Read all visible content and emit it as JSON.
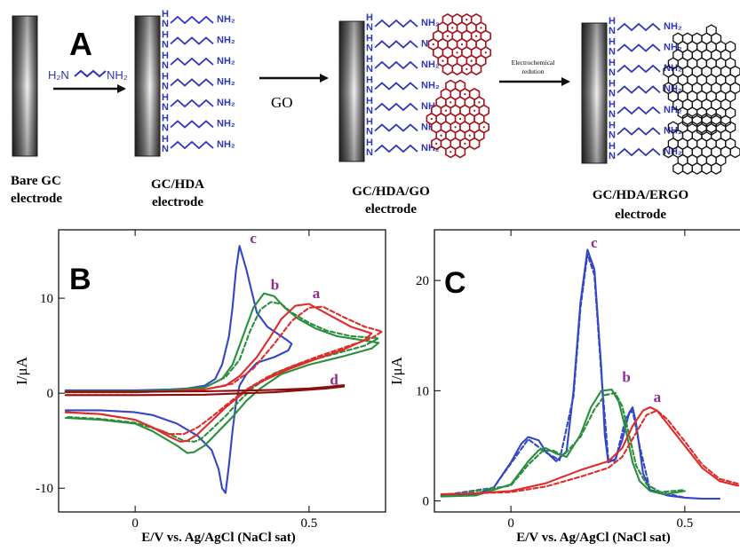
{
  "panel_a": {
    "letter": "A",
    "linker_formula": {
      "left": "H₂N",
      "right": "NH₂"
    },
    "amine_label": "NH₂",
    "h_label": "H",
    "n_label": "N",
    "go_label": "GO",
    "reduction_label_line1": "Electrochemical",
    "reduction_label_line2": "redution",
    "stages": [
      {
        "line1": "Bare GC",
        "line2": "electrode"
      },
      {
        "line1": "GC/HDA",
        "line2": "electrode"
      },
      {
        "line1": "GC/HDA/GO",
        "line2": "electrode"
      },
      {
        "line1": "GC/HDA/ERGO",
        "line2": "electrode"
      }
    ],
    "colors": {
      "chain": "#2b36b8",
      "go": "#a3131a",
      "ergo": "#111111"
    }
  },
  "chart_data": [
    {
      "panel_letter": "B",
      "type": "line",
      "xlabel": "E/V vs. Ag/AgCl (NaCl sat)",
      "ylabel": "I/μA",
      "xlim": [
        -0.22,
        0.72
      ],
      "ylim": [
        -12.5,
        17.2
      ],
      "x_ticks": [
        0,
        0.5
      ],
      "x_tick_labels": [
        "0",
        "0.5"
      ],
      "y_ticks": [
        -10,
        0,
        10
      ],
      "y_tick_labels": [
        "-10",
        "0",
        "10"
      ],
      "curve_labels": [
        {
          "text": "c",
          "x": 0.33,
          "y": 15.8
        },
        {
          "text": "b",
          "x": 0.39,
          "y": 10.9
        },
        {
          "text": "a",
          "x": 0.51,
          "y": 10.0
        },
        {
          "text": "d",
          "x": 0.56,
          "y": 0.9
        }
      ],
      "series": [
        {
          "color": "#3347c4",
          "dashed": false,
          "x": [
            -0.2,
            -0.1,
            0.0,
            0.1,
            0.15,
            0.2,
            0.23,
            0.25,
            0.27,
            0.28,
            0.29,
            0.3,
            0.32,
            0.35,
            0.38,
            0.42,
            0.44,
            0.45,
            0.44,
            0.4,
            0.35,
            0.32,
            0.3,
            0.29,
            0.28,
            0.27,
            0.26,
            0.25,
            0.24,
            0.22,
            0.18,
            0.12,
            0.05,
            0.0,
            -0.1,
            -0.2
          ],
          "y": [
            0.3,
            0.3,
            0.3,
            0.4,
            0.5,
            0.8,
            1.5,
            3.0,
            6.0,
            9.0,
            13.0,
            15.5,
            13.0,
            8.5,
            7.0,
            6.0,
            5.5,
            5.2,
            4.5,
            3.8,
            3.2,
            2.0,
            0.8,
            -1.0,
            -4.0,
            -7.5,
            -10.5,
            -10.0,
            -8.0,
            -6.0,
            -4.5,
            -3.2,
            -2.3,
            -2.0,
            -1.8,
            -1.8
          ]
        },
        {
          "color": "#2a8f3b",
          "dashed": false,
          "x": [
            -0.2,
            -0.1,
            0.0,
            0.1,
            0.2,
            0.25,
            0.28,
            0.31,
            0.34,
            0.37,
            0.4,
            0.43,
            0.47,
            0.52,
            0.58,
            0.65,
            0.7,
            0.68,
            0.6,
            0.5,
            0.42,
            0.36,
            0.32,
            0.28,
            0.24,
            0.2,
            0.17,
            0.15,
            0.12,
            0.05,
            0.0,
            -0.1,
            -0.2
          ],
          "y": [
            0.2,
            0.2,
            0.2,
            0.3,
            0.6,
            1.5,
            3.0,
            6.0,
            9.0,
            10.5,
            10.2,
            9.0,
            7.8,
            6.8,
            6.0,
            5.6,
            5.3,
            4.7,
            3.9,
            3.0,
            2.0,
            0.5,
            -0.8,
            -2.5,
            -4.0,
            -5.5,
            -6.2,
            -6.3,
            -5.5,
            -4.0,
            -3.2,
            -2.8,
            -2.6
          ]
        },
        {
          "color": "#2a8f3b",
          "dashed": true,
          "x": [
            -0.2,
            0.0,
            0.1,
            0.2,
            0.26,
            0.3,
            0.33,
            0.36,
            0.39,
            0.42,
            0.45,
            0.5,
            0.55,
            0.62,
            0.7,
            0.66,
            0.58,
            0.48,
            0.4,
            0.34,
            0.3,
            0.26,
            0.22,
            0.19,
            0.17,
            0.14,
            0.08,
            0.0,
            -0.1,
            -0.2
          ],
          "y": [
            0.2,
            0.2,
            0.3,
            0.6,
            1.7,
            3.5,
            6.5,
            8.8,
            9.6,
            9.4,
            8.5,
            7.4,
            6.6,
            6.0,
            5.8,
            5.0,
            4.2,
            3.2,
            2.1,
            0.6,
            -0.8,
            -2.4,
            -3.8,
            -4.8,
            -5.1,
            -5.0,
            -4.0,
            -3.1,
            -2.7,
            -2.5
          ]
        },
        {
          "color": "#e02b2b",
          "dashed": false,
          "x": [
            -0.2,
            0.0,
            0.1,
            0.2,
            0.26,
            0.3,
            0.35,
            0.39,
            0.42,
            0.46,
            0.5,
            0.56,
            0.62,
            0.68,
            0.66,
            0.6,
            0.52,
            0.44,
            0.38,
            0.34,
            0.3,
            0.26,
            0.22,
            0.18,
            0.15,
            0.13,
            0.1,
            0.05,
            0.0,
            -0.1,
            -0.2
          ],
          "y": [
            0.1,
            0.1,
            0.2,
            0.4,
            0.8,
            1.8,
            3.8,
            6.0,
            7.8,
            9.2,
            9.4,
            8.2,
            7.0,
            6.3,
            5.6,
            4.6,
            3.6,
            2.5,
            1.5,
            0.8,
            -0.3,
            -1.5,
            -2.9,
            -4.3,
            -5.0,
            -5.1,
            -4.6,
            -3.6,
            -2.8,
            -2.2,
            -2.0
          ]
        },
        {
          "color": "#e02b2b",
          "dashed": true,
          "x": [
            -0.2,
            0.0,
            0.1,
            0.2,
            0.28,
            0.34,
            0.4,
            0.45,
            0.5,
            0.54,
            0.6,
            0.66,
            0.71,
            0.68,
            0.6,
            0.52,
            0.44,
            0.38,
            0.32,
            0.27,
            0.22,
            0.18,
            0.14,
            0.1,
            0.05,
            0.0,
            -0.1,
            -0.2
          ],
          "y": [
            0.1,
            0.1,
            0.2,
            0.4,
            1.0,
            2.6,
            5.2,
            7.6,
            9.0,
            9.1,
            8.0,
            7.0,
            6.5,
            5.8,
            4.8,
            3.8,
            2.7,
            1.7,
            0.4,
            -1.0,
            -2.5,
            -3.6,
            -4.3,
            -4.3,
            -3.6,
            -2.8,
            -2.2,
            -2.0
          ]
        },
        {
          "color": "#8a0e0e",
          "dashed": false,
          "x": [
            -0.2,
            0.0,
            0.2,
            0.4,
            0.5,
            0.55,
            0.6,
            0.6,
            0.55,
            0.4,
            0.2,
            0.0,
            -0.2
          ],
          "y": [
            0.15,
            0.15,
            0.2,
            0.35,
            0.5,
            0.65,
            0.85,
            0.7,
            0.5,
            0.1,
            -0.15,
            -0.2,
            -0.2
          ]
        }
      ]
    },
    {
      "panel_letter": "C",
      "type": "line",
      "xlabel": "E/V vs. Ag/AgCl (NaCl sat)",
      "ylabel": "I/μA",
      "xlim": [
        -0.22,
        0.72
      ],
      "ylim": [
        -1.0,
        24.6
      ],
      "x_ticks": [
        0,
        0.5
      ],
      "x_tick_labels": [
        "0",
        "0.5"
      ],
      "y_ticks": [
        0,
        10,
        20
      ],
      "y_tick_labels": [
        "0",
        "10",
        "20"
      ],
      "curve_labels": [
        {
          "text": "c",
          "x": 0.23,
          "y": 23.0
        },
        {
          "text": "b",
          "x": 0.32,
          "y": 10.8
        },
        {
          "text": "a",
          "x": 0.41,
          "y": 9.0
        }
      ],
      "series": [
        {
          "color": "#3347c4",
          "dashed": false,
          "x": [
            -0.2,
            -0.1,
            -0.05,
            0.0,
            0.03,
            0.05,
            0.08,
            0.1,
            0.13,
            0.16,
            0.18,
            0.2,
            0.22,
            0.24,
            0.26,
            0.27,
            0.28,
            0.3,
            0.32,
            0.34,
            0.35,
            0.36,
            0.38,
            0.4,
            0.45,
            0.5,
            0.55,
            0.6
          ],
          "y": [
            0.5,
            0.6,
            1.2,
            3.5,
            5.2,
            5.8,
            5.5,
            4.5,
            3.6,
            4.5,
            10.0,
            18.0,
            22.8,
            21.0,
            12.0,
            6.0,
            3.5,
            3.8,
            5.5,
            8.0,
            8.5,
            7.0,
            2.5,
            1.0,
            0.5,
            0.3,
            0.2,
            0.2
          ]
        },
        {
          "color": "#3347c4",
          "dashed": true,
          "x": [
            -0.2,
            -0.05,
            0.0,
            0.05,
            0.1,
            0.14,
            0.18,
            0.2,
            0.22,
            0.24,
            0.26,
            0.28,
            0.3,
            0.33,
            0.35,
            0.37,
            0.4,
            0.5
          ],
          "y": [
            0.5,
            1.2,
            3.4,
            5.6,
            4.4,
            3.7,
            9.5,
            17.5,
            22.4,
            20.5,
            11.5,
            3.8,
            3.6,
            7.5,
            8.2,
            5.0,
            1.0,
            0.3
          ]
        },
        {
          "color": "#2a8f3b",
          "dashed": false,
          "x": [
            -0.2,
            -0.1,
            0.0,
            0.05,
            0.08,
            0.1,
            0.13,
            0.16,
            0.2,
            0.23,
            0.26,
            0.29,
            0.31,
            0.33,
            0.35,
            0.37,
            0.4,
            0.44,
            0.5
          ],
          "y": [
            0.4,
            0.5,
            1.5,
            3.6,
            4.6,
            4.8,
            4.3,
            4.0,
            6.0,
            8.5,
            10.0,
            10.1,
            9.0,
            6.5,
            3.5,
            1.8,
            0.9,
            0.6,
            0.9
          ]
        },
        {
          "color": "#2a8f3b",
          "dashed": true,
          "x": [
            -0.2,
            0.0,
            0.05,
            0.09,
            0.12,
            0.15,
            0.2,
            0.24,
            0.27,
            0.3,
            0.32,
            0.34,
            0.36,
            0.39,
            0.43,
            0.5
          ],
          "y": [
            0.4,
            1.4,
            3.3,
            4.5,
            4.6,
            4.1,
            5.8,
            8.3,
            9.6,
            9.8,
            8.6,
            6.0,
            3.2,
            1.5,
            0.8,
            1.0
          ]
        },
        {
          "color": "#e02b2b",
          "dashed": false,
          "x": [
            -0.2,
            -0.1,
            0.0,
            0.1,
            0.2,
            0.28,
            0.32,
            0.35,
            0.38,
            0.4,
            0.42,
            0.45,
            0.5,
            0.55,
            0.6,
            0.65,
            0.7
          ],
          "y": [
            0.6,
            0.7,
            0.9,
            1.6,
            2.8,
            3.6,
            4.8,
            6.8,
            8.2,
            8.5,
            8.2,
            7.0,
            5.0,
            3.0,
            1.8,
            1.4,
            1.3
          ]
        },
        {
          "color": "#e02b2b",
          "dashed": true,
          "x": [
            -0.2,
            0.0,
            0.1,
            0.2,
            0.28,
            0.32,
            0.36,
            0.39,
            0.42,
            0.45,
            0.5,
            0.55,
            0.6,
            0.66,
            0.7
          ],
          "y": [
            0.6,
            0.8,
            1.3,
            2.2,
            3.0,
            4.0,
            6.2,
            7.8,
            8.2,
            7.4,
            5.4,
            3.3,
            2.0,
            1.5,
            1.3
          ]
        }
      ]
    }
  ]
}
